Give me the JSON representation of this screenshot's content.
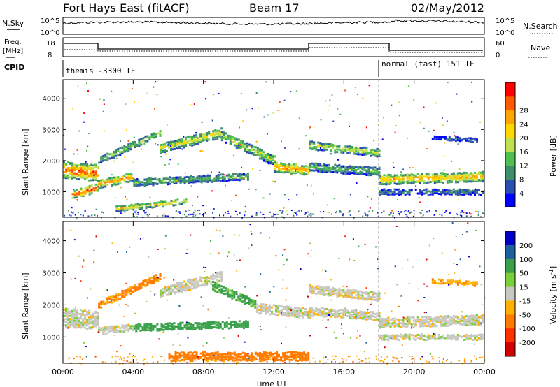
{
  "header": {
    "station": "Fort Hays East (fitACF)",
    "beam": "Beam 17",
    "date": "02/May/2012"
  },
  "top_panels": {
    "nsky_label": "N.Sky",
    "nsearch_label": "N.Search",
    "nsky_ticks": [
      "10^5",
      "10^0"
    ],
    "nsearch_ticks": [
      "10^5",
      "10^0"
    ],
    "freq_label": "Freq.",
    "freq_unit": "[MHz]",
    "freq_ticks": [
      "18",
      "8"
    ],
    "nave_label": "Nave",
    "nave_ticks": [
      "60",
      "0"
    ],
    "cpid_label": "CPID",
    "cpid_1": "themis -3300 IF",
    "cpid_2": "normal (fast) 151 IF"
  },
  "colors": {
    "power": [
      "#0000ff",
      "#2a4fb0",
      "#3f8f6a",
      "#4fbf4f",
      "#bfe04f",
      "#ffd700",
      "#ffa500",
      "#ff5a00",
      "#ff0000"
    ],
    "velocity": [
      "#0000c8",
      "#1e5fa0",
      "#3aa04a",
      "#7ad03a",
      "#c8c8c0",
      "#ffb000",
      "#ff7a00",
      "#ff3000",
      "#d00000"
    ]
  },
  "chart_data": [
    {
      "type": "heatmap",
      "name": "power",
      "xlabel": "",
      "ylabel": "Slant Range [km]",
      "xlim": [
        0,
        24
      ],
      "ylim": [
        180,
        4600
      ],
      "yticks": [
        "1000",
        "2000",
        "3000",
        "4000"
      ],
      "colorbar": {
        "label": "Power [dB]",
        "ticks": [
          "4",
          "8",
          "12",
          "16",
          "20",
          "24",
          "28"
        ],
        "range": [
          0,
          30
        ]
      },
      "bands": [
        {
          "t": [
            0.0,
            2.0
          ],
          "r0": 1700,
          "r1": 1600,
          "w": 500,
          "p": 26
        },
        {
          "t": [
            0.5,
            2.0
          ],
          "r0": 900,
          "r1": 1150,
          "w": 250,
          "p": 27
        },
        {
          "t": [
            2.0,
            4.0
          ],
          "r0": 1250,
          "r1": 1500,
          "w": 250,
          "p": 24
        },
        {
          "t": [
            2.0,
            5.5
          ],
          "r0": 2000,
          "r1": 2900,
          "w": 200,
          "p": 14
        },
        {
          "t": [
            5.5,
            9.0
          ],
          "r0": 2400,
          "r1": 2900,
          "w": 300,
          "p": 18
        },
        {
          "t": [
            9.0,
            12.0
          ],
          "r0": 2800,
          "r1": 2000,
          "w": 300,
          "p": 16
        },
        {
          "t": [
            12.0,
            14.0
          ],
          "r0": 1800,
          "r1": 1700,
          "w": 300,
          "p": 24
        },
        {
          "t": [
            4.0,
            10.5
          ],
          "r0": 1300,
          "r1": 1500,
          "w": 200,
          "p": 12
        },
        {
          "t": [
            3.0,
            7.0
          ],
          "r0": 450,
          "r1": 700,
          "w": 150,
          "p": 20
        },
        {
          "t": [
            14.0,
            18.0
          ],
          "r0": 2500,
          "r1": 2250,
          "w": 250,
          "p": 16
        },
        {
          "t": [
            14.0,
            18.0
          ],
          "r0": 1800,
          "r1": 1650,
          "w": 250,
          "p": 12
        },
        {
          "t": [
            18.0,
            24.0
          ],
          "r0": 1400,
          "r1": 1500,
          "w": 300,
          "p": 22
        },
        {
          "t": [
            18.0,
            24.0
          ],
          "r0": 1000,
          "r1": 1000,
          "w": 150,
          "p": 8
        },
        {
          "t": [
            21.0,
            23.6
          ],
          "r0": 2750,
          "r1": 2650,
          "w": 100,
          "p": 6
        }
      ]
    },
    {
      "type": "heatmap",
      "name": "velocity",
      "xlabel": "Time UT",
      "ylabel": "Slant Range [km]",
      "xlim": [
        0,
        24
      ],
      "ylim": [
        180,
        4600
      ],
      "yticks": [
        "1000",
        "2000",
        "3000",
        "4000"
      ],
      "xticks": [
        "00:00",
        "04:00",
        "08:00",
        "12:00",
        "16:00",
        "20:00",
        "00:00"
      ],
      "colorbar": {
        "label": "Velocity [m s^-1]",
        "ticks": [
          "200",
          "100",
          "50",
          "15",
          "-15",
          "-50",
          "-100",
          "-200"
        ],
        "range": [
          -250,
          250
        ]
      },
      "bands": [
        {
          "t": [
            0.0,
            2.0
          ],
          "r0": 1600,
          "r1": 1500,
          "w": 550,
          "v": 0
        },
        {
          "t": [
            2.0,
            5.5
          ],
          "r0": 2000,
          "r1": 2900,
          "w": 200,
          "v": -60
        },
        {
          "t": [
            5.5,
            9.0
          ],
          "r0": 2400,
          "r1": 2900,
          "w": 300,
          "v": 0
        },
        {
          "t": [
            8.5,
            11.0
          ],
          "r0": 2600,
          "r1": 2000,
          "w": 250,
          "v": 60
        },
        {
          "t": [
            11.0,
            14.0
          ],
          "r0": 1900,
          "r1": 1750,
          "w": 300,
          "v": 0
        },
        {
          "t": [
            4.0,
            10.5
          ],
          "r0": 1300,
          "r1": 1400,
          "w": 200,
          "v": 70
        },
        {
          "t": [
            2.0,
            4.0
          ],
          "r0": 1200,
          "r1": 1300,
          "w": 200,
          "v": 0
        },
        {
          "t": [
            14.0,
            18.0
          ],
          "r0": 2500,
          "r1": 2250,
          "w": 250,
          "v": 0
        },
        {
          "t": [
            14.0,
            18.0
          ],
          "r0": 1800,
          "r1": 1650,
          "w": 250,
          "v": 0
        },
        {
          "t": [
            18.0,
            24.0
          ],
          "r0": 1450,
          "r1": 1550,
          "w": 300,
          "v": 0
        },
        {
          "t": [
            18.0,
            24.0
          ],
          "r0": 1000,
          "r1": 1000,
          "w": 150,
          "v": 0
        },
        {
          "t": [
            21.0,
            23.6
          ],
          "r0": 2750,
          "r1": 2650,
          "w": 100,
          "v": -40
        },
        {
          "t": [
            6.0,
            14.0
          ],
          "r0": 400,
          "r1": 400,
          "w": 250,
          "v": -80
        }
      ]
    }
  ]
}
